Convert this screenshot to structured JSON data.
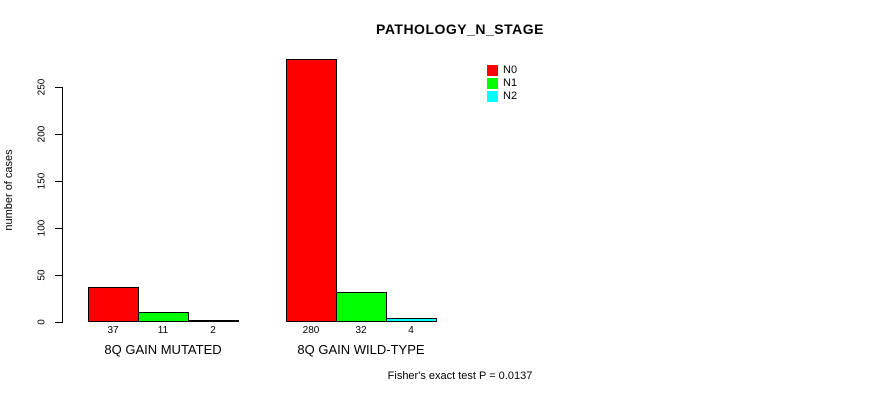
{
  "chart_data": {
    "type": "bar",
    "title": "PATHOLOGY_N_STAGE",
    "ylabel": "number of cases",
    "xlabel": "",
    "ylim": [
      0,
      280
    ],
    "yticks": [
      0,
      50,
      100,
      150,
      200,
      250
    ],
    "grid": false,
    "legend_position": "top-right-inside",
    "categories": [
      "8Q GAIN MUTATED",
      "8Q GAIN WILD-TYPE"
    ],
    "series": [
      {
        "name": "N0",
        "color": "#ff0000",
        "values": [
          37,
          280
        ]
      },
      {
        "name": "N1",
        "color": "#00ff00",
        "values": [
          11,
          32
        ]
      },
      {
        "name": "N2",
        "color": "#00ffff",
        "values": [
          2,
          4
        ]
      }
    ],
    "bar_value_labels": [
      [
        37,
        11,
        2
      ],
      [
        280,
        32,
        4
      ]
    ],
    "annotation": "Fisher's exact test P = 0.0137",
    "bar_border_color": "#000000",
    "axis_color": "#000000"
  }
}
